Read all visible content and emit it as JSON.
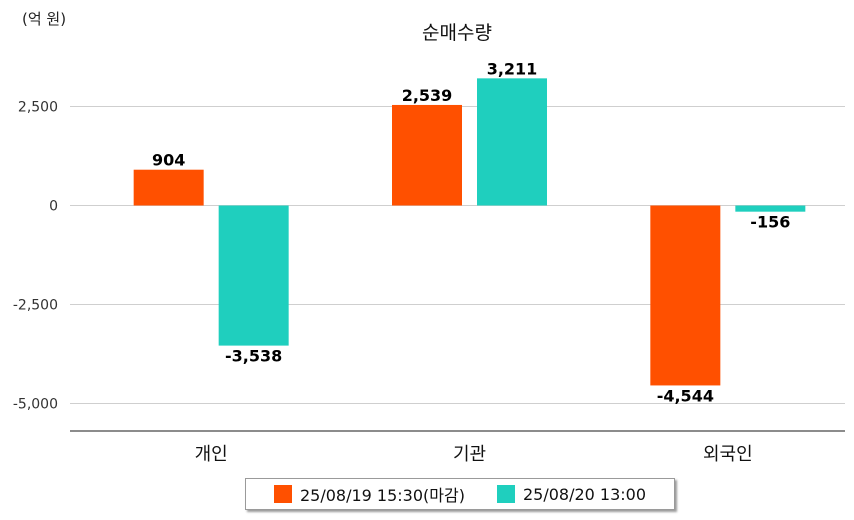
{
  "unit_label": "(억 원)",
  "chart_data": {
    "type": "bar",
    "title": "순매수량",
    "categories": [
      "개인",
      "기관",
      "외국인"
    ],
    "series": [
      {
        "name": "25/08/19 15:30(마감)",
        "color": "#ff5000",
        "values": [
          904,
          2539,
          -4544
        ],
        "labels": [
          "904",
          "2,539",
          "-4,544"
        ]
      },
      {
        "name": "25/08/20 13:00",
        "color": "#1fcfbe",
        "values": [
          -3538,
          3211,
          -156
        ],
        "labels": [
          "-3,538",
          "3,211",
          "-156"
        ]
      }
    ],
    "yticks": [
      2500,
      0,
      -2500,
      -5000
    ],
    "ytick_labels": [
      "2,500",
      "0",
      "-2,500",
      "-5,000"
    ],
    "ylim": [
      -5600,
      3700
    ],
    "grid": true,
    "legend": "bottom-center"
  }
}
